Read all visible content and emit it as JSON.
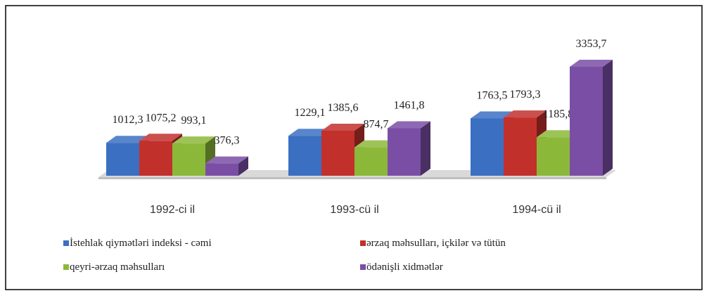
{
  "chart_data": {
    "type": "bar3d",
    "categories": [
      "1992-ci il",
      "1993-cü il",
      "1994-cü il"
    ],
    "series": [
      {
        "name": "İstehlak qiymətləri indeksi - cəmi",
        "color": "#3b6fc2",
        "values": [
          1012.3,
          1229.1,
          1763.5
        ],
        "value_labels": [
          "1012,3",
          "1229,1",
          "1763,5"
        ]
      },
      {
        "name": "ərzaq məhsulları, içkilər və tütün",
        "color": "#c2302c",
        "values": [
          1075.2,
          1385.6,
          1793.3
        ],
        "value_labels": [
          "1075,2",
          "1385,6",
          "1793,3"
        ]
      },
      {
        "name": "qeyri-ərzaq məhsulları",
        "color": "#8cb83a",
        "values": [
          993.1,
          874.7,
          1185.8
        ],
        "value_labels": [
          "993,1",
          "874,7",
          "1185,8"
        ]
      },
      {
        "name": "ödənişli xidmətlər",
        "color": "#7a4ea5",
        "values": [
          376.3,
          1461.8,
          3353.7
        ],
        "value_labels": [
          "376,3",
          "1461,8",
          "3353,7"
        ]
      }
    ]
  }
}
